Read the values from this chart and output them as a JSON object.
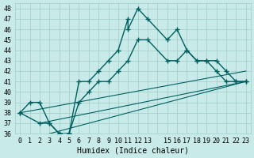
{
  "bg_color": "#c8eae8",
  "grid_color": "#a0ccc8",
  "line_color": "#006060",
  "marker_color": "#006060",
  "xlabel": "Humidex (Indice chaleur)",
  "xlim": [
    -0.5,
    23.5
  ],
  "ylim": [
    36,
    48.5
  ],
  "yticks": [
    36,
    37,
    38,
    39,
    40,
    41,
    42,
    43,
    44,
    45,
    46,
    47,
    48
  ],
  "xticks": [
    0,
    1,
    2,
    3,
    4,
    5,
    6,
    7,
    8,
    9,
    10,
    11,
    12,
    13,
    14,
    15,
    16,
    17,
    18,
    19,
    20,
    21,
    22,
    23
  ],
  "xtick_labels": [
    "0",
    "1",
    "2",
    "3",
    "4",
    "5",
    "6",
    "7",
    "8",
    "9",
    "10",
    "11",
    "12",
    "13",
    "",
    "15",
    "16",
    "17",
    "18",
    "19",
    "20",
    "21",
    "22",
    "23"
  ],
  "curve1_x": [
    0,
    1,
    2,
    3,
    4,
    5,
    6,
    7,
    8,
    9,
    10,
    11,
    11,
    12,
    13,
    15,
    16,
    17,
    18,
    19,
    20,
    21,
    22,
    23
  ],
  "curve1_y": [
    38,
    39,
    39,
    37,
    36,
    36,
    41,
    41,
    42,
    43,
    44,
    47,
    46,
    48,
    47,
    45,
    46,
    44,
    43,
    43,
    43,
    42,
    41,
    41
  ],
  "curve2_x": [
    0,
    2,
    3,
    4,
    5,
    6,
    7,
    8,
    9,
    10,
    11,
    12,
    13,
    15,
    16,
    17,
    18,
    19,
    20,
    21,
    22,
    23
  ],
  "curve2_y": [
    38,
    37,
    37,
    36,
    36,
    39,
    40,
    41,
    41,
    42,
    43,
    45,
    45,
    43,
    43,
    44,
    43,
    43,
    42,
    41,
    41,
    41
  ],
  "line1_x": [
    0,
    23
  ],
  "line1_y": [
    38,
    42
  ],
  "line2_x": [
    2,
    23
  ],
  "line2_y": [
    37,
    41
  ],
  "line3_x": [
    3,
    23
  ],
  "line3_y": [
    36,
    41
  ]
}
